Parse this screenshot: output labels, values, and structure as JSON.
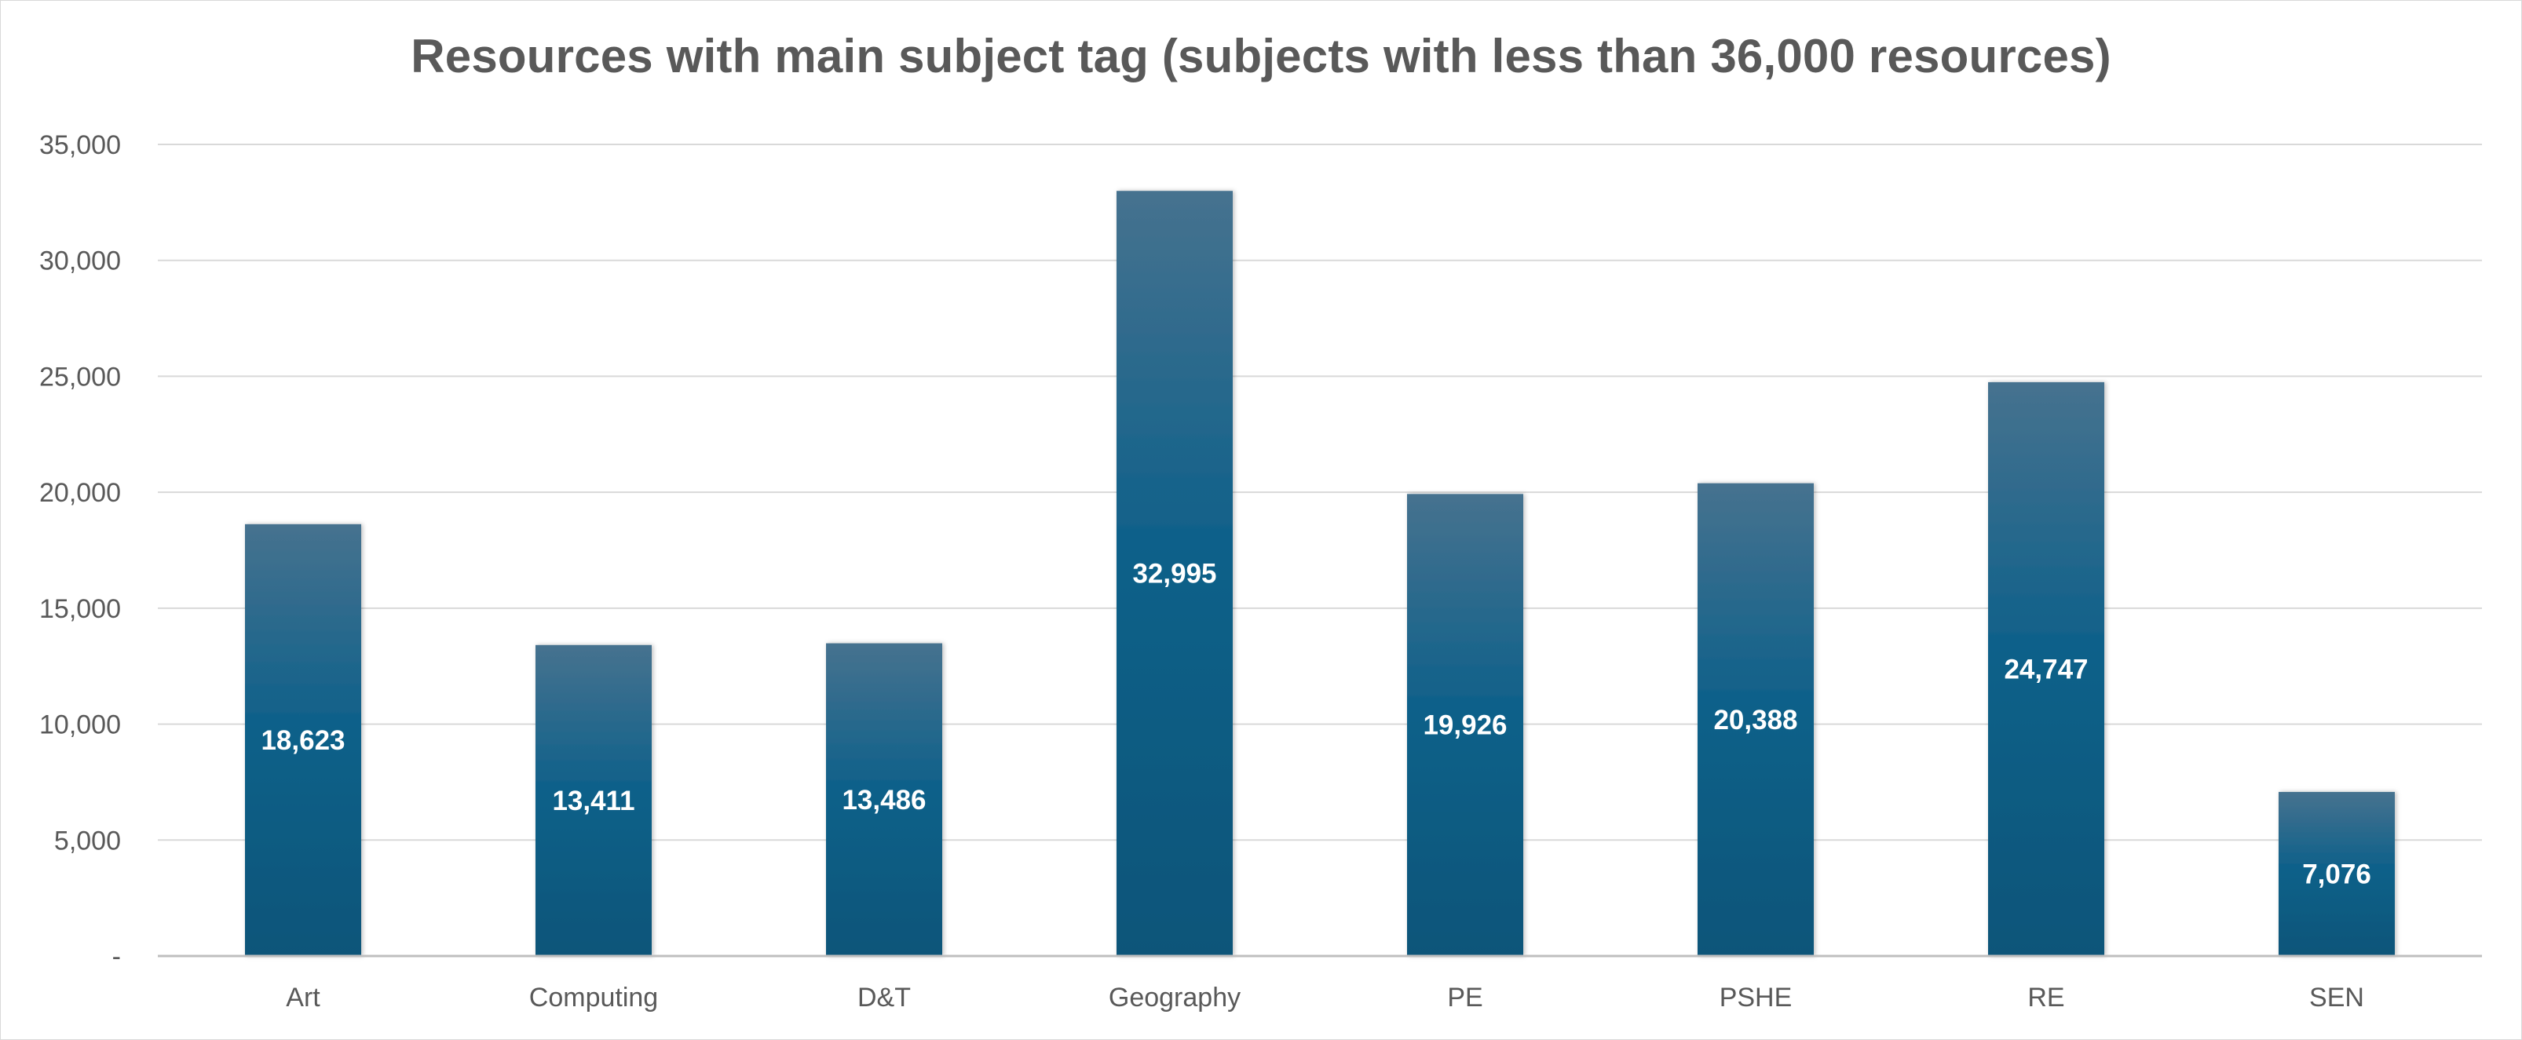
{
  "chart_data": {
    "type": "bar",
    "title": "Resources with main subject tag (subjects with less than 36,000 resources)",
    "xlabel": "",
    "ylabel": "",
    "categories": [
      "Art",
      "Computing",
      "D&T",
      "Geography",
      "PE",
      "PSHE",
      "RE",
      "SEN"
    ],
    "values": [
      18623,
      13411,
      13486,
      32995,
      19926,
      20388,
      24747,
      7076
    ],
    "data_labels": [
      "18,623",
      "13,411",
      "13,486",
      "32,995",
      "19,926",
      "20,388",
      "24,747",
      "7,076"
    ],
    "ylim": [
      0,
      35000
    ],
    "y_ticks": [
      0,
      5000,
      10000,
      15000,
      20000,
      25000,
      30000,
      35000
    ],
    "y_tick_labels": [
      "-",
      "5,000",
      "10,000",
      "15,000",
      "20,000",
      "25,000",
      "30,000",
      "35,000"
    ],
    "grid": true,
    "legend": "none",
    "colors": {
      "bar_top": "#46728F",
      "bar_bottom": "#0B5579",
      "gridline": "#d9d9d9",
      "axis": "#bfbfbf",
      "text": "#595959",
      "data_label": "#ffffff"
    }
  }
}
